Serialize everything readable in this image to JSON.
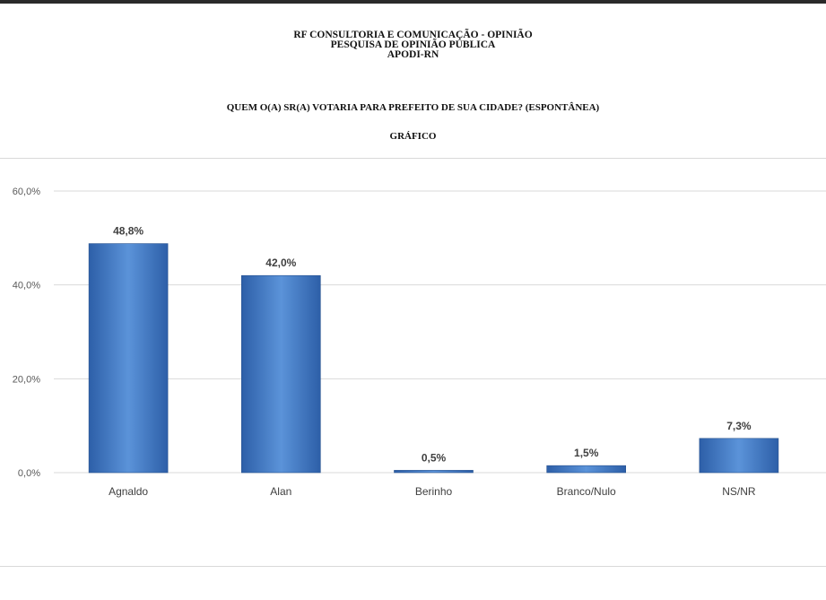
{
  "header": {
    "line1": "RF CONSULTORIA E COMUNICAÇÃO - OPINIÃO",
    "line2": "PESQUISA DE OPINIÃO PÚBLICA",
    "line3": "APODI-RN"
  },
  "question": "QUEM O(A) SR(A) VOTARIA PARA PREFEITO DE SUA CIDADE? (ESPONTÂNEA)",
  "section_label": "GRÁFICO",
  "colors": {
    "bar_light": "#5b93d9",
    "bar_dark": "#2d5fa8",
    "gridline": "#d9d9d9"
  },
  "chart_data": {
    "type": "bar",
    "categories": [
      "Agnaldo",
      "Alan",
      "Berinho",
      "Branco/Nulo",
      "NS/NR"
    ],
    "values": [
      48.8,
      42.0,
      0.5,
      1.5,
      7.3
    ],
    "value_labels": [
      "48,8%",
      "42,0%",
      "0,5%",
      "1,5%",
      "7,3%"
    ],
    "ylim": [
      0,
      60
    ],
    "yticks": [
      0,
      20,
      40,
      60
    ],
    "ytick_labels": [
      "0,0%",
      "20,0%",
      "40,0%",
      "60,0%"
    ],
    "grid": true,
    "legend": "none"
  }
}
